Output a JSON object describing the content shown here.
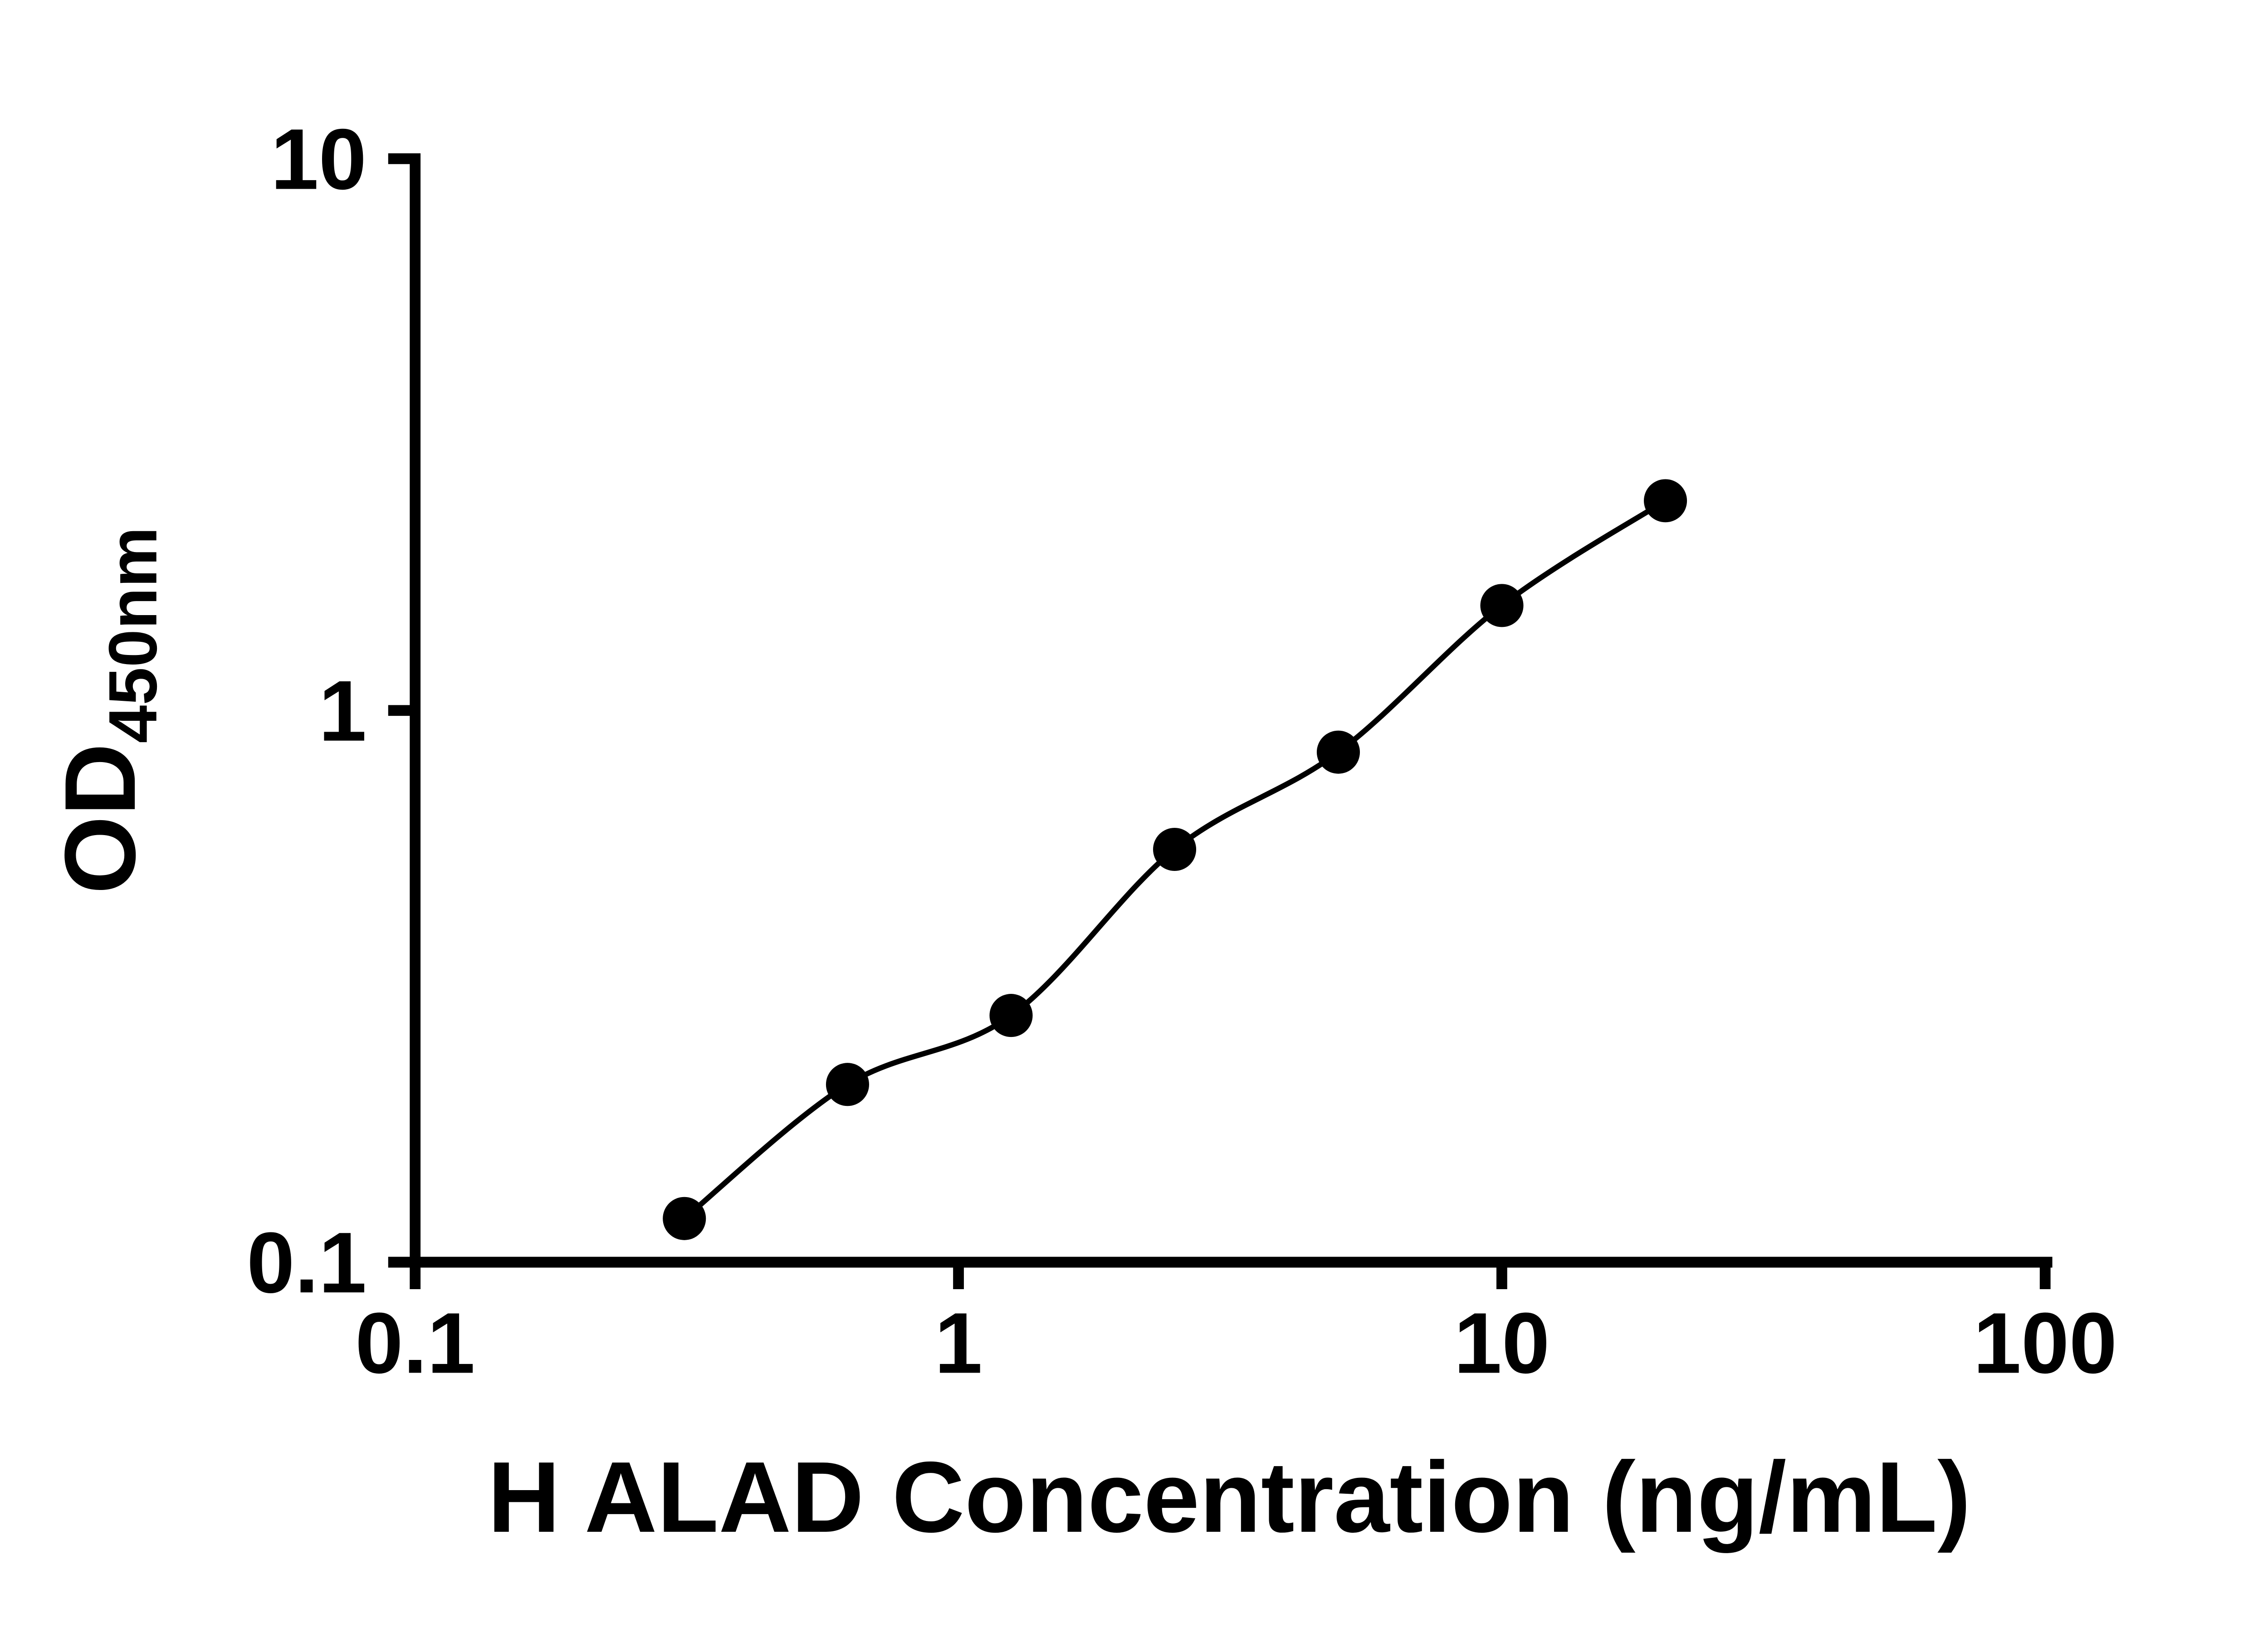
{
  "chart_data": {
    "type": "scatter",
    "title": "",
    "xlabel": "H ALAD Concentration (ng/mL)",
    "ylabel": "OD",
    "ylabel_subscript": "450nm",
    "x_scale": "log",
    "y_scale": "log",
    "xlim": [
      0.1,
      100
    ],
    "ylim": [
      0.1,
      10
    ],
    "x_ticks": [
      0.1,
      1,
      10,
      100
    ],
    "x_tick_labels": [
      "0.1",
      "1",
      "10",
      "100"
    ],
    "y_ticks": [
      0.1,
      1,
      10
    ],
    "y_tick_labels": [
      "0.1",
      "1",
      "10"
    ],
    "grid": false,
    "legend": false,
    "marker_color": "#000000",
    "line_color": "#000000",
    "axis_color": "#000000",
    "series": [
      {
        "points": [
          {
            "x": 0.313,
            "y": 0.12
          },
          {
            "x": 0.625,
            "y": 0.21
          },
          {
            "x": 1.25,
            "y": 0.28
          },
          {
            "x": 2.5,
            "y": 0.56
          },
          {
            "x": 5,
            "y": 0.84
          },
          {
            "x": 10,
            "y": 1.55
          },
          {
            "x": 20,
            "y": 2.4
          }
        ]
      }
    ]
  }
}
